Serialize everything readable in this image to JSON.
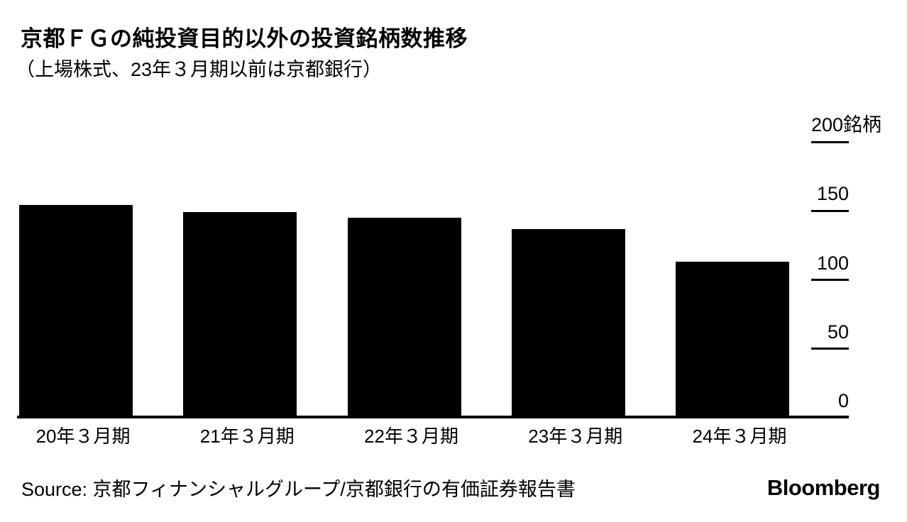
{
  "header": {
    "title": "京都ＦＧの純投資目的以外の投資銘柄数推移",
    "subtitle": "（上場株式、23年３月期以前は京都銀行）"
  },
  "chart_data": {
    "type": "bar",
    "title": "京都ＦＧの純投資目的以外の投資銘柄数推移",
    "subtitle": "（上場株式、23年３月期以前は京都銀行）",
    "categories": [
      "20年３月期",
      "21年３月期",
      "22年３月期",
      "23年３月期",
      "24年３月期"
    ],
    "values": [
      154,
      149,
      145,
      137,
      113
    ],
    "unit": "銘柄",
    "bar_color": "#000000",
    "background_color": "#ffffff",
    "ylim": [
      0,
      200
    ],
    "y_ticks": [
      {
        "value": 200,
        "label": "200銘柄"
      },
      {
        "value": 150,
        "label": "150"
      },
      {
        "value": 100,
        "label": "100"
      },
      {
        "value": 50,
        "label": "50"
      },
      {
        "value": 0,
        "label": "0"
      }
    ],
    "y_axis_side": "right",
    "grid": false,
    "legend": false
  },
  "footer": {
    "source": "Source: 京都フィナンシャルグループ/京都銀行の有価証券報告書",
    "brand": "Bloomberg"
  }
}
